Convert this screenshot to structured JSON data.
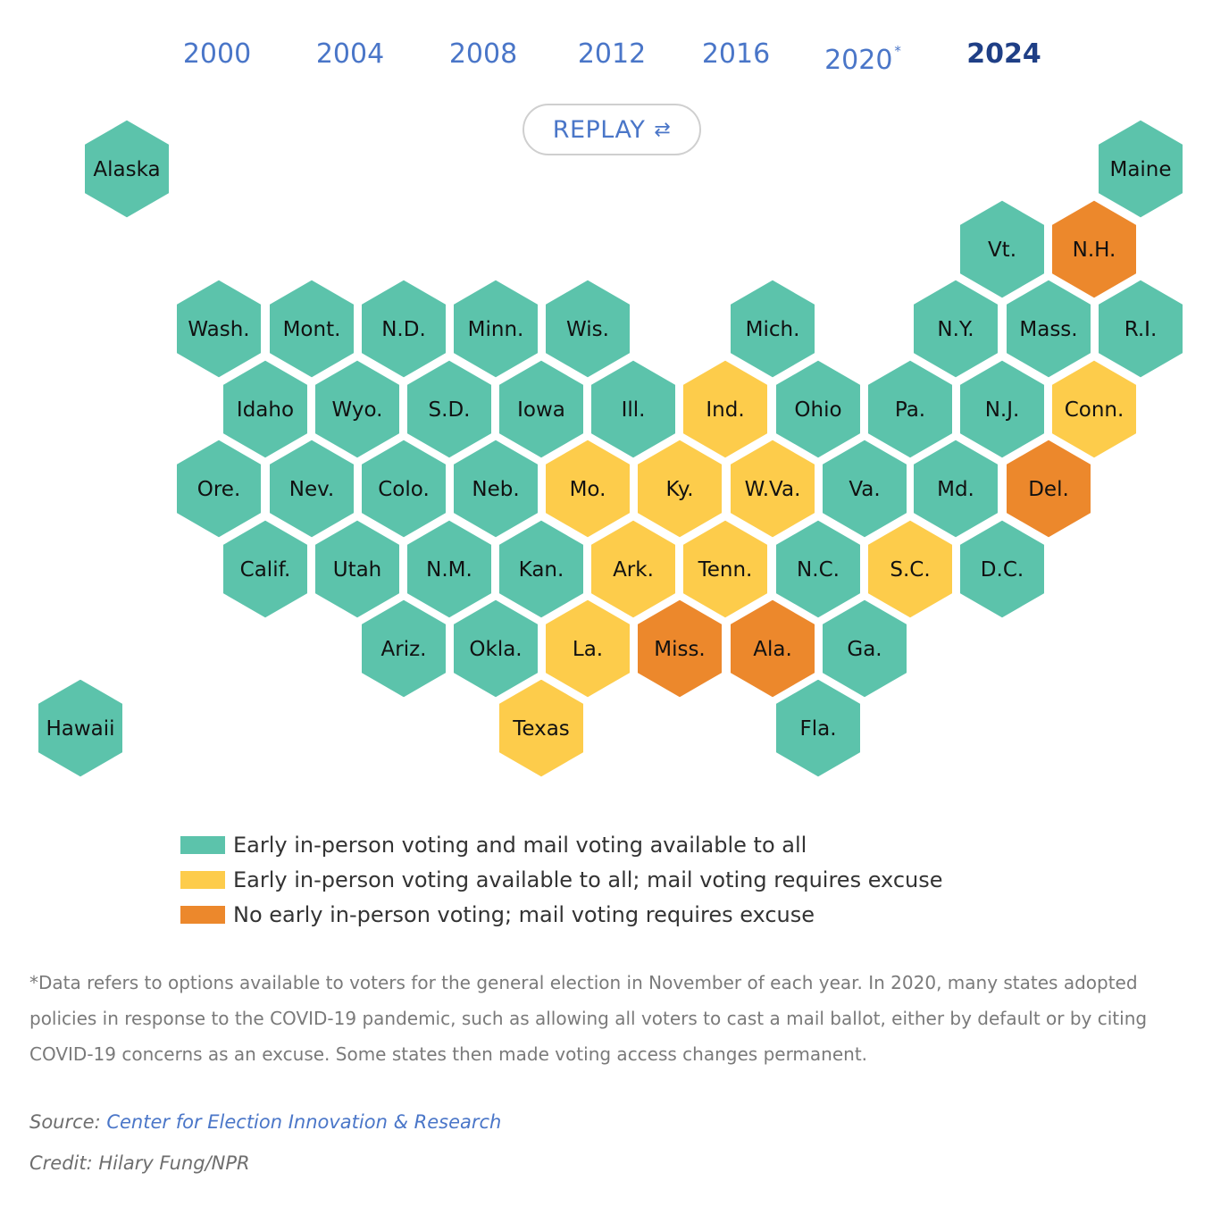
{
  "year_tabs": [
    {
      "label": "2000",
      "active": false,
      "asterisk": ""
    },
    {
      "label": "2004",
      "active": false,
      "asterisk": ""
    },
    {
      "label": "2008",
      "active": false,
      "asterisk": ""
    },
    {
      "label": "2012",
      "active": false,
      "asterisk": ""
    },
    {
      "label": "2016",
      "active": false,
      "asterisk": ""
    },
    {
      "label": "2020",
      "active": false,
      "asterisk": "*"
    },
    {
      "label": "2024",
      "active": true,
      "asterisk": ""
    }
  ],
  "replay": {
    "label": "REPLAY",
    "icon": "refresh-icon",
    "icon_glyph": "⇄"
  },
  "colors": {
    "all": "#5cc3ab",
    "early_only": "#fdcc4b",
    "none": "#ec882c"
  },
  "legend": [
    {
      "category": "all",
      "label": "Early in-person voting and mail voting available to all"
    },
    {
      "category": "early_only",
      "label": "Early in-person voting available to all; mail voting requires excuse"
    },
    {
      "category": "none",
      "label": "No early in-person voting; mail voting requires excuse"
    }
  ],
  "states": [
    {
      "label": "Alaska",
      "category": "all"
    },
    {
      "label": "Maine",
      "category": "all"
    },
    {
      "label": "Vt.",
      "category": "all"
    },
    {
      "label": "N.H.",
      "category": "none"
    },
    {
      "label": "Wash.",
      "category": "all"
    },
    {
      "label": "Mont.",
      "category": "all"
    },
    {
      "label": "N.D.",
      "category": "all"
    },
    {
      "label": "Minn.",
      "category": "all"
    },
    {
      "label": "Wis.",
      "category": "all"
    },
    {
      "label": "Mich.",
      "category": "all"
    },
    {
      "label": "N.Y.",
      "category": "all"
    },
    {
      "label": "Mass.",
      "category": "all"
    },
    {
      "label": "R.I.",
      "category": "all"
    },
    {
      "label": "Idaho",
      "category": "all"
    },
    {
      "label": "Wyo.",
      "category": "all"
    },
    {
      "label": "S.D.",
      "category": "all"
    },
    {
      "label": "Iowa",
      "category": "all"
    },
    {
      "label": "Ill.",
      "category": "all"
    },
    {
      "label": "Ind.",
      "category": "early_only"
    },
    {
      "label": "Ohio",
      "category": "all"
    },
    {
      "label": "Pa.",
      "category": "all"
    },
    {
      "label": "N.J.",
      "category": "all"
    },
    {
      "label": "Conn.",
      "category": "early_only"
    },
    {
      "label": "Ore.",
      "category": "all"
    },
    {
      "label": "Nev.",
      "category": "all"
    },
    {
      "label": "Colo.",
      "category": "all"
    },
    {
      "label": "Neb.",
      "category": "all"
    },
    {
      "label": "Mo.",
      "category": "early_only"
    },
    {
      "label": "Ky.",
      "category": "early_only"
    },
    {
      "label": "W.Va.",
      "category": "early_only"
    },
    {
      "label": "Va.",
      "category": "all"
    },
    {
      "label": "Md.",
      "category": "all"
    },
    {
      "label": "Del.",
      "category": "none"
    },
    {
      "label": "Calif.",
      "category": "all"
    },
    {
      "label": "Utah",
      "category": "all"
    },
    {
      "label": "N.M.",
      "category": "all"
    },
    {
      "label": "Kan.",
      "category": "all"
    },
    {
      "label": "Ark.",
      "category": "early_only"
    },
    {
      "label": "Tenn.",
      "category": "early_only"
    },
    {
      "label": "N.C.",
      "category": "all"
    },
    {
      "label": "S.C.",
      "category": "early_only"
    },
    {
      "label": "D.C.",
      "category": "all"
    },
    {
      "label": "Ariz.",
      "category": "all"
    },
    {
      "label": "Okla.",
      "category": "all"
    },
    {
      "label": "La.",
      "category": "early_only"
    },
    {
      "label": "Miss.",
      "category": "none"
    },
    {
      "label": "Ala.",
      "category": "none"
    },
    {
      "label": "Ga.",
      "category": "all"
    },
    {
      "label": "Hawaii",
      "category": "all"
    },
    {
      "label": "Texas",
      "category": "early_only"
    },
    {
      "label": "Fla.",
      "category": "all"
    }
  ],
  "footnote": "*Data refers to options available to voters for the general election in November of each year. In 2020, many states adopted policies in response to the COVID-19 pandemic, such as allowing all voters to cast a mail ballot, either by default or by citing COVID-19 concerns as an excuse. Some states then made voting access changes permanent.",
  "source": {
    "prefix": "Source: ",
    "link_text": "Center for Election Innovation & Research"
  },
  "credit": "Credit: Hilary Fung/NPR"
}
